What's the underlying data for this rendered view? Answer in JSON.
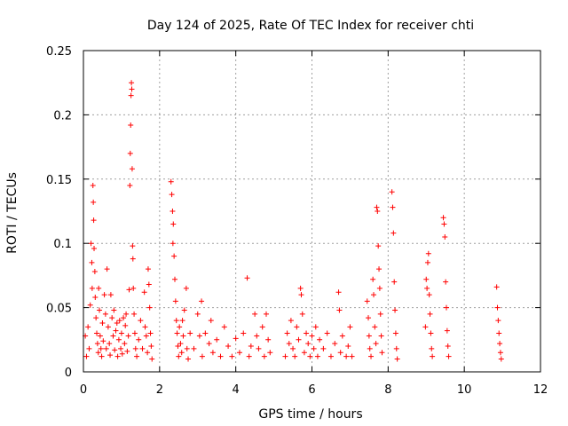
{
  "chart_data": {
    "type": "scatter",
    "title": "Day 124 of 2025, Rate Of TEC Index for receiver chti",
    "xlabel": "GPS time / hours",
    "ylabel": "ROTI / TECUs",
    "xlim": [
      0,
      12
    ],
    "ylim": [
      0,
      0.25
    ],
    "xticks": [
      0,
      2,
      4,
      6,
      8,
      10,
      12
    ],
    "xtick_labels": [
      "0",
      "2",
      "4",
      "6",
      "8",
      "10",
      "12"
    ],
    "yticks": [
      0,
      0.05,
      0.1,
      0.15,
      0.2,
      0.25
    ],
    "ytick_labels": [
      "0",
      "0.05",
      "0.1",
      "0.15",
      "0.2",
      "0.25"
    ],
    "grid": true,
    "marker": "+",
    "series": [
      {
        "name": "ROTI",
        "color": "#ff0000",
        "points": [
          [
            0.05,
            0.028
          ],
          [
            0.08,
            0.012
          ],
          [
            0.12,
            0.035
          ],
          [
            0.15,
            0.018
          ],
          [
            0.18,
            0.052
          ],
          [
            0.2,
            0.1
          ],
          [
            0.22,
            0.085
          ],
          [
            0.23,
            0.065
          ],
          [
            0.25,
            0.145
          ],
          [
            0.26,
            0.132
          ],
          [
            0.27,
            0.118
          ],
          [
            0.28,
            0.096
          ],
          [
            0.3,
            0.078
          ],
          [
            0.31,
            0.058
          ],
          [
            0.33,
            0.042
          ],
          [
            0.35,
            0.03
          ],
          [
            0.37,
            0.022
          ],
          [
            0.39,
            0.015
          ],
          [
            0.4,
            0.065
          ],
          [
            0.42,
            0.048
          ],
          [
            0.44,
            0.028
          ],
          [
            0.46,
            0.018
          ],
          [
            0.48,
            0.012
          ],
          [
            0.5,
            0.038
          ],
          [
            0.52,
            0.024
          ],
          [
            0.55,
            0.06
          ],
          [
            0.58,
            0.045
          ],
          [
            0.6,
            0.018
          ],
          [
            0.62,
            0.08
          ],
          [
            0.65,
            0.035
          ],
          [
            0.68,
            0.022
          ],
          [
            0.7,
            0.013
          ],
          [
            0.72,
            0.06
          ],
          [
            0.75,
            0.042
          ],
          [
            0.78,
            0.028
          ],
          [
            0.8,
            0.048
          ],
          [
            0.82,
            0.017
          ],
          [
            0.85,
            0.032
          ],
          [
            0.88,
            0.038
          ],
          [
            0.9,
            0.012
          ],
          [
            0.93,
            0.025
          ],
          [
            0.95,
            0.04
          ],
          [
            0.98,
            0.018
          ],
          [
            1.0,
            0.03
          ],
          [
            1.02,
            0.014
          ],
          [
            1.05,
            0.042
          ],
          [
            1.08,
            0.022
          ],
          [
            1.1,
            0.036
          ],
          [
            1.12,
            0.045
          ],
          [
            1.15,
            0.016
          ],
          [
            1.18,
            0.028
          ],
          [
            1.2,
            0.064
          ],
          [
            1.22,
            0.145
          ],
          [
            1.23,
            0.17
          ],
          [
            1.24,
            0.192
          ],
          [
            1.25,
            0.215
          ],
          [
            1.26,
            0.225
          ],
          [
            1.27,
            0.22
          ],
          [
            1.28,
            0.158
          ],
          [
            1.29,
            0.098
          ],
          [
            1.3,
            0.088
          ],
          [
            1.31,
            0.065
          ],
          [
            1.33,
            0.045
          ],
          [
            1.35,
            0.03
          ],
          [
            1.37,
            0.018
          ],
          [
            1.4,
            0.012
          ],
          [
            1.45,
            0.025
          ],
          [
            1.5,
            0.04
          ],
          [
            1.55,
            0.018
          ],
          [
            1.6,
            0.062
          ],
          [
            1.62,
            0.035
          ],
          [
            1.65,
            0.028
          ],
          [
            1.68,
            0.015
          ],
          [
            1.7,
            0.08
          ],
          [
            1.72,
            0.068
          ],
          [
            1.74,
            0.05
          ],
          [
            1.76,
            0.03
          ],
          [
            1.78,
            0.02
          ],
          [
            1.8,
            0.01
          ],
          [
            2.3,
            0.148
          ],
          [
            2.32,
            0.138
          ],
          [
            2.34,
            0.125
          ],
          [
            2.35,
            0.1
          ],
          [
            2.36,
            0.115
          ],
          [
            2.38,
            0.09
          ],
          [
            2.4,
            0.072
          ],
          [
            2.42,
            0.055
          ],
          [
            2.44,
            0.04
          ],
          [
            2.46,
            0.03
          ],
          [
            2.48,
            0.02
          ],
          [
            2.5,
            0.012
          ],
          [
            2.52,
            0.035
          ],
          [
            2.55,
            0.022
          ],
          [
            2.58,
            0.015
          ],
          [
            2.6,
            0.04
          ],
          [
            2.62,
            0.028
          ],
          [
            2.65,
            0.048
          ],
          [
            2.7,
            0.065
          ],
          [
            2.72,
            0.018
          ],
          [
            2.75,
            0.01
          ],
          [
            2.8,
            0.03
          ],
          [
            2.9,
            0.018
          ],
          [
            3.0,
            0.045
          ],
          [
            3.05,
            0.028
          ],
          [
            3.1,
            0.055
          ],
          [
            3.12,
            0.012
          ],
          [
            3.2,
            0.03
          ],
          [
            3.3,
            0.022
          ],
          [
            3.35,
            0.04
          ],
          [
            3.4,
            0.015
          ],
          [
            3.5,
            0.025
          ],
          [
            3.6,
            0.012
          ],
          [
            3.7,
            0.035
          ],
          [
            3.8,
            0.02
          ],
          [
            3.9,
            0.012
          ],
          [
            4.0,
            0.026
          ],
          [
            4.1,
            0.015
          ],
          [
            4.2,
            0.03
          ],
          [
            4.3,
            0.073
          ],
          [
            4.35,
            0.012
          ],
          [
            4.4,
            0.02
          ],
          [
            4.5,
            0.045
          ],
          [
            4.55,
            0.028
          ],
          [
            4.6,
            0.018
          ],
          [
            4.7,
            0.035
          ],
          [
            4.75,
            0.012
          ],
          [
            4.8,
            0.045
          ],
          [
            4.85,
            0.025
          ],
          [
            4.9,
            0.015
          ],
          [
            5.3,
            0.012
          ],
          [
            5.35,
            0.03
          ],
          [
            5.4,
            0.022
          ],
          [
            5.45,
            0.04
          ],
          [
            5.5,
            0.018
          ],
          [
            5.55,
            0.012
          ],
          [
            5.6,
            0.035
          ],
          [
            5.65,
            0.025
          ],
          [
            5.7,
            0.065
          ],
          [
            5.72,
            0.06
          ],
          [
            5.75,
            0.045
          ],
          [
            5.8,
            0.015
          ],
          [
            5.85,
            0.03
          ],
          [
            5.9,
            0.022
          ],
          [
            5.95,
            0.012
          ],
          [
            6.0,
            0.028
          ],
          [
            6.05,
            0.018
          ],
          [
            6.1,
            0.035
          ],
          [
            6.15,
            0.012
          ],
          [
            6.2,
            0.025
          ],
          [
            6.3,
            0.018
          ],
          [
            6.4,
            0.03
          ],
          [
            6.5,
            0.012
          ],
          [
            6.6,
            0.022
          ],
          [
            6.7,
            0.062
          ],
          [
            6.72,
            0.048
          ],
          [
            6.75,
            0.015
          ],
          [
            6.8,
            0.028
          ],
          [
            6.9,
            0.012
          ],
          [
            6.95,
            0.02
          ],
          [
            7.0,
            0.035
          ],
          [
            7.05,
            0.012
          ],
          [
            7.45,
            0.055
          ],
          [
            7.48,
            0.042
          ],
          [
            7.5,
            0.028
          ],
          [
            7.52,
            0.018
          ],
          [
            7.55,
            0.012
          ],
          [
            7.6,
            0.072
          ],
          [
            7.62,
            0.06
          ],
          [
            7.65,
            0.035
          ],
          [
            7.68,
            0.022
          ],
          [
            7.7,
            0.128
          ],
          [
            7.72,
            0.125
          ],
          [
            7.74,
            0.098
          ],
          [
            7.76,
            0.08
          ],
          [
            7.78,
            0.065
          ],
          [
            7.8,
            0.045
          ],
          [
            7.82,
            0.028
          ],
          [
            7.84,
            0.015
          ],
          [
            8.1,
            0.14
          ],
          [
            8.12,
            0.128
          ],
          [
            8.14,
            0.108
          ],
          [
            8.16,
            0.07
          ],
          [
            8.18,
            0.048
          ],
          [
            8.2,
            0.03
          ],
          [
            8.22,
            0.018
          ],
          [
            8.24,
            0.01
          ],
          [
            8.98,
            0.035
          ],
          [
            9.0,
            0.072
          ],
          [
            9.02,
            0.065
          ],
          [
            9.04,
            0.085
          ],
          [
            9.06,
            0.092
          ],
          [
            9.08,
            0.06
          ],
          [
            9.1,
            0.045
          ],
          [
            9.12,
            0.03
          ],
          [
            9.14,
            0.018
          ],
          [
            9.16,
            0.012
          ],
          [
            9.45,
            0.12
          ],
          [
            9.47,
            0.115
          ],
          [
            9.49,
            0.105
          ],
          [
            9.51,
            0.07
          ],
          [
            9.53,
            0.05
          ],
          [
            9.55,
            0.032
          ],
          [
            9.57,
            0.02
          ],
          [
            9.59,
            0.012
          ],
          [
            10.85,
            0.066
          ],
          [
            10.87,
            0.05
          ],
          [
            10.89,
            0.04
          ],
          [
            10.91,
            0.03
          ],
          [
            10.93,
            0.022
          ],
          [
            10.95,
            0.015
          ],
          [
            10.97,
            0.01
          ]
        ]
      }
    ]
  }
}
